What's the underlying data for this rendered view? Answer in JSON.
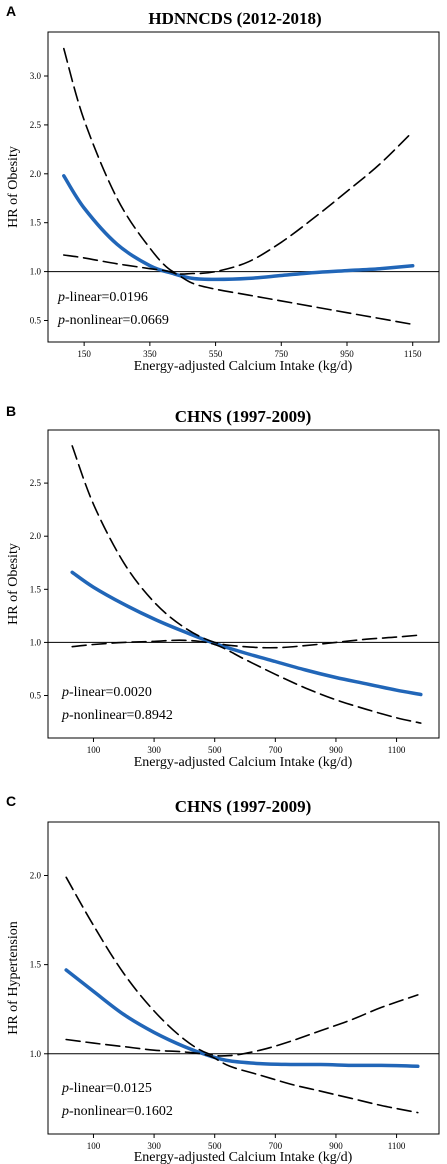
{
  "chart_data": [
    {
      "panel": "A",
      "type": "line",
      "title": "HDNNCDS (2012-2018)",
      "xlabel": "Energy-adjusted Calcium Intake (kg/d)",
      "ylabel": "HR of Obesity",
      "xticks": [
        150,
        350,
        550,
        750,
        950,
        1150
      ],
      "yticks": [
        0.5,
        1.0,
        1.5,
        2.0,
        2.5,
        3.0
      ],
      "xlim": [
        40,
        1230
      ],
      "ylim": [
        0.28,
        3.45
      ],
      "reference_line": 1.0,
      "annotations": [
        {
          "italic": "p",
          "text": "-linear=0.0196"
        },
        {
          "italic": "p",
          "text": "-nonlinear=0.0669"
        }
      ],
      "series": [
        {
          "role": "estimate",
          "style": "solid",
          "color": "#2166b8",
          "x": [
            88,
            150,
            250,
            350,
            420,
            480,
            550,
            650,
            750,
            850,
            950,
            1050,
            1150
          ],
          "y": [
            1.98,
            1.65,
            1.28,
            1.06,
            0.98,
            0.93,
            0.92,
            0.93,
            0.96,
            0.99,
            1.01,
            1.03,
            1.06
          ]
        },
        {
          "role": "upper-ci",
          "style": "dashed",
          "color": "#000000",
          "x": [
            88,
            150,
            250,
            350,
            420,
            480,
            550,
            650,
            750,
            850,
            950,
            1050,
            1150
          ],
          "y": [
            3.28,
            2.55,
            1.75,
            1.24,
            1.0,
            0.98,
            1.0,
            1.1,
            1.3,
            1.55,
            1.82,
            2.1,
            2.43
          ]
        },
        {
          "role": "lower-ci",
          "style": "dashed",
          "color": "#000000",
          "x": [
            88,
            150,
            250,
            350,
            420,
            480,
            550,
            650,
            750,
            850,
            950,
            1050,
            1150
          ],
          "y": [
            1.17,
            1.14,
            1.08,
            1.03,
            0.99,
            0.88,
            0.82,
            0.76,
            0.7,
            0.64,
            0.58,
            0.52,
            0.46
          ]
        }
      ]
    },
    {
      "panel": "B",
      "type": "line",
      "title": "CHNS (1997-2009)",
      "xlabel": "Energy-adjusted Calcium Intake (kg/d)",
      "ylabel": "HR of Obesity",
      "xticks": [
        100,
        300,
        500,
        700,
        900,
        1100
      ],
      "yticks": [
        0.5,
        1.0,
        1.5,
        2.0,
        2.5
      ],
      "xlim": [
        -50,
        1240
      ],
      "ylim": [
        0.1,
        3.0
      ],
      "reference_line": 1.0,
      "annotations": [
        {
          "italic": "p",
          "text": "-linear=0.0020"
        },
        {
          "italic": "p",
          "text": "-nonlinear=0.8942"
        }
      ],
      "series": [
        {
          "role": "estimate",
          "style": "solid",
          "color": "#2166b8",
          "x": [
            30,
            100,
            200,
            300,
            400,
            500,
            600,
            700,
            800,
            900,
            1000,
            1100,
            1180
          ],
          "y": [
            1.66,
            1.52,
            1.36,
            1.22,
            1.1,
            0.99,
            0.9,
            0.82,
            0.74,
            0.67,
            0.61,
            0.55,
            0.51
          ]
        },
        {
          "role": "upper-ci",
          "style": "dashed",
          "color": "#000000",
          "x": [
            30,
            100,
            200,
            300,
            400,
            500,
            600,
            700,
            800,
            900,
            1000,
            1100,
            1180
          ],
          "y": [
            2.85,
            2.3,
            1.75,
            1.38,
            1.14,
            1.0,
            0.96,
            0.95,
            0.97,
            1.0,
            1.03,
            1.05,
            1.07
          ]
        },
        {
          "role": "lower-ci",
          "style": "dashed",
          "color": "#000000",
          "x": [
            30,
            100,
            200,
            300,
            400,
            500,
            600,
            700,
            800,
            900,
            1000,
            1100,
            1180
          ],
          "y": [
            0.96,
            0.98,
            1.0,
            1.01,
            1.02,
            0.98,
            0.84,
            0.7,
            0.57,
            0.46,
            0.37,
            0.29,
            0.24
          ]
        }
      ]
    },
    {
      "panel": "C",
      "type": "line",
      "title": "CHNS (1997-2009)",
      "xlabel": "Energy-adjusted Calcium Intake (kg/d)",
      "ylabel": "HR of Hypertension",
      "xticks": [
        100,
        300,
        500,
        700,
        900,
        1100
      ],
      "yticks": [
        1.0,
        1.5,
        2.0
      ],
      "xlim": [
        -50,
        1240
      ],
      "ylim": [
        0.55,
        2.3
      ],
      "reference_line": 1.0,
      "annotations": [
        {
          "italic": "p",
          "text": "-linear=0.0125"
        },
        {
          "italic": "p",
          "text": "-nonlinear=0.1602"
        }
      ],
      "series": [
        {
          "role": "estimate",
          "style": "solid",
          "color": "#2166b8",
          "x": [
            10,
            100,
            200,
            300,
            400,
            480,
            550,
            650,
            750,
            850,
            950,
            1050,
            1170
          ],
          "y": [
            1.47,
            1.35,
            1.22,
            1.12,
            1.04,
            0.99,
            0.96,
            0.945,
            0.94,
            0.94,
            0.935,
            0.935,
            0.93
          ]
        },
        {
          "role": "upper-ci",
          "style": "dashed",
          "color": "#000000",
          "x": [
            10,
            100,
            200,
            300,
            400,
            480,
            550,
            650,
            750,
            850,
            950,
            1050,
            1170
          ],
          "y": [
            1.99,
            1.72,
            1.45,
            1.24,
            1.08,
            1.0,
            0.99,
            1.02,
            1.07,
            1.13,
            1.19,
            1.26,
            1.33
          ]
        },
        {
          "role": "lower-ci",
          "style": "dashed",
          "color": "#000000",
          "x": [
            10,
            100,
            200,
            300,
            400,
            480,
            550,
            650,
            750,
            850,
            950,
            1050,
            1170
          ],
          "y": [
            1.08,
            1.06,
            1.04,
            1.02,
            1.01,
            0.99,
            0.93,
            0.88,
            0.83,
            0.79,
            0.75,
            0.71,
            0.67
          ]
        }
      ]
    }
  ]
}
